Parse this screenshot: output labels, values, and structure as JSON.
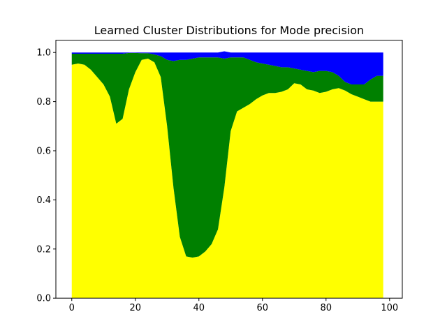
{
  "chart_data": {
    "type": "area",
    "title": "Learned Cluster Distributions for Mode precision",
    "xlabel": "",
    "ylabel": "",
    "xlim": [
      -5,
      104
    ],
    "ylim": [
      0,
      1.05
    ],
    "x_ticks": [
      0,
      20,
      40,
      60,
      80,
      100
    ],
    "y_ticks": [
      0.0,
      0.2,
      0.4,
      0.6,
      0.8,
      1.0
    ],
    "x_tick_labels": [
      "0",
      "20",
      "40",
      "60",
      "80",
      "100"
    ],
    "y_tick_labels": [
      "0.0",
      "0.2",
      "0.4",
      "0.6",
      "0.8",
      "1.0"
    ],
    "stacked": true,
    "grid": false,
    "colors": {
      "yellow": "#ffff00",
      "green": "#008000",
      "blue": "#0000ff"
    },
    "x": [
      0,
      2,
      4,
      6,
      8,
      10,
      12,
      14,
      16,
      18,
      20,
      22,
      24,
      26,
      28,
      30,
      32,
      34,
      36,
      38,
      40,
      42,
      44,
      46,
      48,
      50,
      52,
      54,
      56,
      58,
      60,
      62,
      64,
      66,
      68,
      70,
      72,
      74,
      76,
      78,
      80,
      82,
      84,
      86,
      88,
      90,
      92,
      94,
      96,
      98
    ],
    "series": [
      {
        "color": "yellow",
        "values": [
          0.95,
          0.955,
          0.95,
          0.93,
          0.9,
          0.87,
          0.82,
          0.71,
          0.73,
          0.85,
          0.92,
          0.97,
          0.975,
          0.96,
          0.9,
          0.7,
          0.45,
          0.25,
          0.17,
          0.165,
          0.17,
          0.19,
          0.22,
          0.28,
          0.45,
          0.68,
          0.76,
          0.775,
          0.79,
          0.81,
          0.825,
          0.835,
          0.835,
          0.84,
          0.85,
          0.875,
          0.87,
          0.85,
          0.845,
          0.835,
          0.84,
          0.85,
          0.855,
          0.845,
          0.83,
          0.82,
          0.81,
          0.8,
          0.8,
          0.8
        ]
      },
      {
        "color": "green",
        "values": [
          0.045,
          0.04,
          0.045,
          0.065,
          0.095,
          0.125,
          0.175,
          0.285,
          0.265,
          0.148,
          0.078,
          0.027,
          0.022,
          0.032,
          0.085,
          0.27,
          0.515,
          0.72,
          0.8,
          0.81,
          0.81,
          0.79,
          0.76,
          0.7,
          0.525,
          0.3,
          0.22,
          0.205,
          0.18,
          0.15,
          0.13,
          0.115,
          0.11,
          0.1,
          0.09,
          0.06,
          0.06,
          0.075,
          0.075,
          0.09,
          0.085,
          0.07,
          0.05,
          0.035,
          0.04,
          0.05,
          0.06,
          0.09,
          0.105,
          0.105
        ]
      },
      {
        "color": "blue",
        "values": [
          0.005,
          0.005,
          0.005,
          0.005,
          0.005,
          0.005,
          0.005,
          0.005,
          0.005,
          0.002,
          0.002,
          0.003,
          0.003,
          0.008,
          0.015,
          0.03,
          0.035,
          0.03,
          0.03,
          0.025,
          0.02,
          0.02,
          0.02,
          0.02,
          0.03,
          0.02,
          0.02,
          0.02,
          0.03,
          0.04,
          0.045,
          0.05,
          0.055,
          0.06,
          0.06,
          0.065,
          0.07,
          0.075,
          0.08,
          0.075,
          0.075,
          0.08,
          0.095,
          0.12,
          0.13,
          0.13,
          0.13,
          0.11,
          0.095,
          0.095
        ]
      }
    ]
  }
}
